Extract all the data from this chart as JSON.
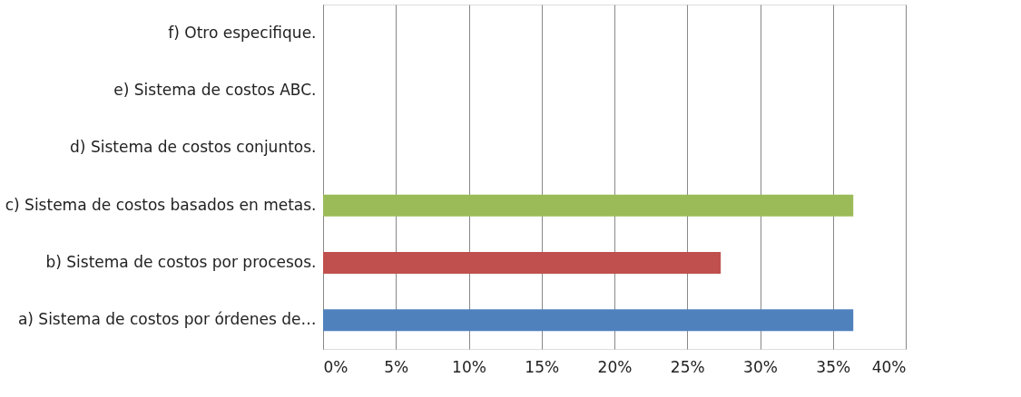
{
  "chart_data": {
    "type": "bar",
    "orientation": "horizontal",
    "categories": [
      "f) Otro especifique.",
      "e) Sistema de costos ABC.",
      "d) Sistema de costos conjuntos.",
      "c) Sistema de costos basados en metas.",
      "b) Sistema de costos por procesos.",
      "a) Sistema de costos por órdenes de…"
    ],
    "values": [
      0,
      0,
      0,
      36.4,
      27.3,
      36.4
    ],
    "colors": [
      "#4f81bd",
      "#4f81bd",
      "#4f81bd",
      "#9bbb59",
      "#c0504d",
      "#4f81bd"
    ],
    "xlim": [
      0,
      40
    ],
    "xticks": [
      {
        "value": 0,
        "label": "0%"
      },
      {
        "value": 5,
        "label": "5%"
      },
      {
        "value": 10,
        "label": "10%"
      },
      {
        "value": 15,
        "label": "15%"
      },
      {
        "value": 20,
        "label": "20%"
      },
      {
        "value": 25,
        "label": "25%"
      },
      {
        "value": 30,
        "label": "30%"
      },
      {
        "value": 35,
        "label": "35%"
      },
      {
        "value": 40,
        "label": "40%"
      }
    ],
    "grid": "x"
  }
}
